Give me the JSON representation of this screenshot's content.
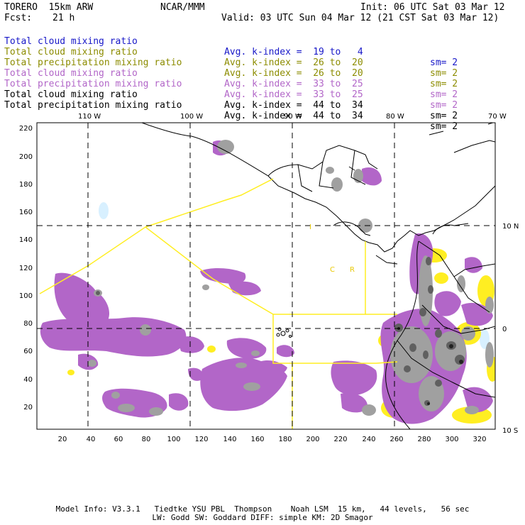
{
  "header": {
    "model": "TORERO  15km ARW",
    "center": "NCAR/MMM",
    "init": "Init: 06 UTC Sat 03 Mar 12",
    "fcst_label": "Fcst:",
    "fcst_value": "21 h",
    "valid": "Valid: 03 UTC Sun 04 Mar 12 (21 CST Sat 03 Mar 12)"
  },
  "legend": [
    {
      "field": "Total cloud mixing ratio",
      "kindex": "Avg. k-index =  19 to   4",
      "sm": "sm= 2",
      "color": "#1818c8"
    },
    {
      "field": "Total cloud mixing ratio",
      "kindex": "Avg. k-index =  26 to  20",
      "sm": "sm= 2",
      "color": "#8c8c00"
    },
    {
      "field": "Total precipitation mixing ratio",
      "kindex": "Avg. k-index =  26 to  20",
      "sm": "sm= 2",
      "color": "#8c8c00"
    },
    {
      "field": "Total cloud mixing ratio",
      "kindex": "Avg. k-index =  33 to  25",
      "sm": "sm= 2",
      "color": "#b266c8"
    },
    {
      "field": "Total precipitation mixing ratio",
      "kindex": "Avg. k-index =  33 to  25",
      "sm": "sm= 2",
      "color": "#b266c8"
    },
    {
      "field": "Total cloud mixing ratio",
      "kindex": "Avg. k-index =  44 to  34",
      "sm": "sm= 2",
      "color": "#000000"
    },
    {
      "field": "Total precipitation mixing ratio",
      "kindex": "Avg. k-index =  44 to  34",
      "sm": "sm= 2",
      "color": "#000000"
    }
  ],
  "map": {
    "lon_labels": [
      "110 W",
      "100 W",
      "90 W",
      "80 W",
      "70 W"
    ],
    "lat_labels": [
      "10 N",
      "0",
      "10 S"
    ],
    "y_ticks": [
      "220",
      "200",
      "180",
      "160",
      "140",
      "120",
      "100",
      "80",
      "60",
      "40",
      "20"
    ],
    "x_ticks": [
      "20",
      "40",
      "60",
      "80",
      "100",
      "120",
      "140",
      "160",
      "180",
      "200",
      "220",
      "240",
      "260",
      "280",
      "300",
      "320"
    ],
    "region_labels": [
      "I",
      "C",
      "R"
    ]
  },
  "colors": {
    "purple": "#b266c8",
    "gray": "#a0a0a0",
    "dark_gray": "#606060",
    "yellow": "#ffee22",
    "light_blue": "#d8f0ff"
  },
  "footer": {
    "line1": "Model Info: V3.3.1   Tiedtke YSU PBL  Thompson    Noah LSM  15 km,   44 levels,   56 sec",
    "line2": "LW: Godd SW: Goddard DIFF: simple KM: 2D Smagor"
  }
}
